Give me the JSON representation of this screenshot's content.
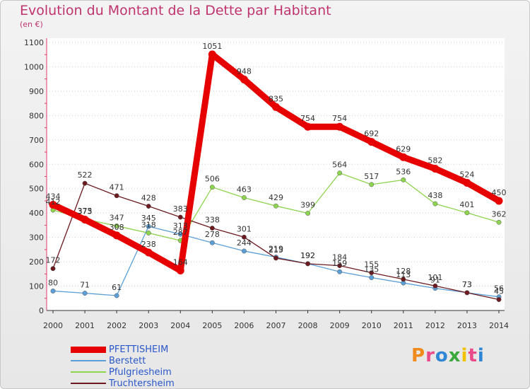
{
  "title": "Evolution du Montant de la Dette par Habitant",
  "subtitle": "(en €)",
  "logo": {
    "text": "Proxiti",
    "colors": [
      "#f08a1c",
      "#e94b8a",
      "#2f86d4",
      "#3aa83a",
      "#f2c100",
      "#e94b8a",
      "#2f86d4"
    ]
  },
  "chart_data": {
    "type": "line",
    "title": "Evolution du Montant de la Dette par Habitant",
    "subtitle": "(en €)",
    "x": [
      "2000",
      "2001",
      "2002",
      "2003",
      "2004",
      "2005",
      "2006",
      "2007",
      "2008",
      "2009",
      "2010",
      "2011",
      "2012",
      "2013",
      "2014"
    ],
    "y_ticks": [
      0,
      100,
      200,
      300,
      400,
      500,
      600,
      700,
      800,
      900,
      1000,
      1100
    ],
    "ylim": [
      0,
      1100
    ],
    "grid": "horizontal, dotted",
    "legend_position": "bottom-left",
    "series": [
      {
        "name": "PFETTISHEIM",
        "color": "#e60000",
        "values": [
          434,
          373,
          308,
          238,
          164,
          1051,
          948,
          835,
          754,
          754,
          692,
          629,
          582,
          524,
          450
        ],
        "labels": [
          "434",
          "373",
          "308",
          "238",
          "164",
          "1051",
          "948",
          "835",
          "754",
          "754",
          "692",
          "629",
          "582",
          "524",
          "450"
        ]
      },
      {
        "name": "Berstett",
        "color": "#5b9fd6",
        "values": [
          80,
          71,
          61,
          345,
          313,
          278,
          244,
          219,
          192,
          159,
          135,
          113,
          91,
          73,
          56
        ],
        "labels": [
          "80",
          "71",
          "61",
          "345",
          "313",
          "278",
          "244",
          "219",
          "192",
          "159",
          "135",
          "113",
          "91",
          "73",
          "56"
        ]
      },
      {
        "name": "Pfulgriesheim",
        "color": "#8ed44e",
        "values": [
          412,
          375,
          347,
          318,
          287,
          506,
          463,
          429,
          399,
          564,
          517,
          536,
          438,
          401,
          362
        ],
        "labels": [
          "412",
          "375",
          "347",
          "318",
          "287",
          "506",
          "463",
          "429",
          "399",
          "564",
          "517",
          "536",
          "438",
          "401",
          "362"
        ]
      },
      {
        "name": "Truchtersheim",
        "color": "#6b1a1f",
        "values": [
          172,
          522,
          471,
          428,
          383,
          338,
          301,
          215,
          192,
          184,
          155,
          128,
          101,
          73,
          45
        ],
        "labels": [
          "172",
          "522",
          "471",
          "428",
          "383",
          "338",
          "301",
          "215",
          "192",
          "184",
          "155",
          "128",
          "101",
          "73",
          "45"
        ]
      }
    ]
  }
}
